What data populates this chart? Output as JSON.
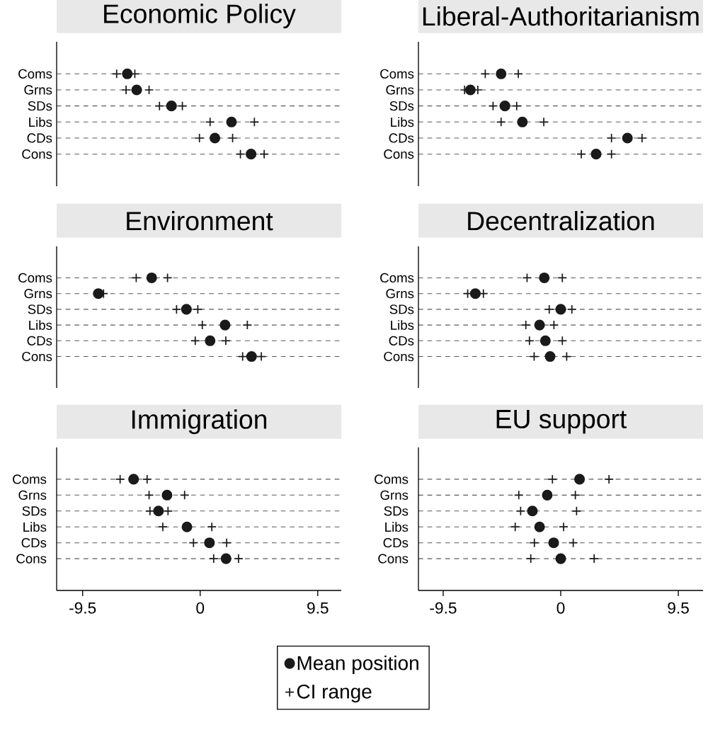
{
  "chart_data": [
    {
      "type": "scatter",
      "title": "Economic Policy",
      "orientation": "horizontal",
      "categories": [
        "Coms",
        "Grns",
        "SDs",
        "Libs",
        "CDs",
        "Cons"
      ],
      "xlim": [
        -11.6,
        11.4
      ],
      "xticks": [
        -9.5,
        0,
        9.5
      ],
      "tick_labels": "y",
      "grid": "y",
      "series": [
        {
          "color": "#1a1a1a",
          "marker": "circle",
          "values": [
            -5.89,
            -5.13,
            -2.32,
            2.53,
            1.19,
            4.11
          ]
        },
        {
          "color": "#1a1a1a",
          "marker": "cross",
          "values": [
            -6.75,
            -5.99,
            -3.29,
            0.8,
            -0.06,
            3.25
          ]
        },
        {
          "color": "#1a1a1a",
          "marker": "cross",
          "values": [
            -5.28,
            -4.13,
            -1.44,
            4.38,
            2.62,
            5.17
          ]
        }
      ]
    },
    {
      "type": "scatter",
      "title": "Liberal-Authoritarianism",
      "orientation": "horizontal",
      "categories": [
        "Coms",
        "Grns",
        "SDs",
        "Libs",
        "CDs",
        "Cons"
      ],
      "xlim": [
        -11.5,
        11.5
      ],
      "xticks": [
        -9.5,
        0,
        9.5
      ],
      "tick_labels": "y",
      "grid": "y",
      "series": [
        {
          "color": "#1a1a1a",
          "marker": "circle",
          "values": [
            -4.82,
            -7.3,
            -4.51,
            -3.1,
            5.39,
            2.86
          ]
        },
        {
          "color": "#1a1a1a",
          "marker": "cross",
          "values": [
            -6.1,
            -7.77,
            -5.47,
            -4.82,
            4.1,
            1.66
          ]
        },
        {
          "color": "#1a1a1a",
          "marker": "cross",
          "values": [
            -3.43,
            -6.7,
            -3.56,
            -1.37,
            6.57,
            4.1
          ]
        }
      ]
    },
    {
      "type": "scatter",
      "title": "Environment",
      "orientation": "horizontal",
      "categories": [
        "Coms",
        "Grns",
        "SDs",
        "Libs",
        "CDs",
        "Cons"
      ],
      "xlim": [
        -11.6,
        11.4
      ],
      "xticks": [
        -9.5,
        0,
        9.5
      ],
      "tick_labels": "y",
      "grid": "y",
      "series": [
        {
          "color": "#1a1a1a",
          "marker": "circle",
          "values": [
            -3.92,
            -8.23,
            -1.11,
            2.01,
            0.8,
            4.15
          ]
        },
        {
          "color": "#1a1a1a",
          "marker": "cross",
          "values": [
            -5.17,
            null,
            -1.91,
            0.17,
            -0.4,
            3.43
          ]
        },
        {
          "color": "#1a1a1a",
          "marker": "cross",
          "values": [
            -2.64,
            -7.81,
            -0.19,
            3.81,
            2.07,
            4.94
          ]
        }
      ]
    },
    {
      "type": "scatter",
      "title": "Decentralization",
      "orientation": "horizontal",
      "categories": [
        "Coms",
        "Grns",
        "SDs",
        "Libs",
        "CDs",
        "Cons"
      ],
      "xlim": [
        -11.5,
        11.5
      ],
      "xticks": [
        -9.5,
        0,
        9.5
      ],
      "tick_labels": "y",
      "grid": "y",
      "series": [
        {
          "color": "#1a1a1a",
          "marker": "circle",
          "values": [
            -1.33,
            -6.9,
            0.0,
            -1.71,
            -1.24,
            -0.86
          ]
        },
        {
          "color": "#1a1a1a",
          "marker": "cross",
          "values": [
            -2.72,
            -7.52,
            -0.93,
            -2.82,
            -2.53,
            -2.15
          ]
        },
        {
          "color": "#1a1a1a",
          "marker": "cross",
          "values": [
            0.13,
            -6.25,
            0.9,
            -0.55,
            0.13,
            0.48
          ]
        }
      ]
    },
    {
      "type": "scatter",
      "title": "Immigration",
      "orientation": "horizontal",
      "categories": [
        "Coms",
        "Grns",
        "SDs",
        "Libs",
        "CDs",
        "Cons"
      ],
      "xlim": [
        -11.6,
        11.4
      ],
      "xticks": [
        -9.5,
        0,
        9.5
      ],
      "grid": "y",
      "series": [
        {
          "color": "#1a1a1a",
          "marker": "circle",
          "values": [
            -5.38,
            -2.68,
            -3.37,
            -1.07,
            0.75,
            2.09
          ]
        },
        {
          "color": "#1a1a1a",
          "marker": "cross",
          "values": [
            -6.47,
            -4.13,
            -4.06,
            -3.02,
            -0.54,
            1.09
          ]
        },
        {
          "color": "#1a1a1a",
          "marker": "cross",
          "values": [
            -4.29,
            -1.26,
            -2.6,
            0.94,
            2.14,
            3.1
          ]
        }
      ]
    },
    {
      "type": "scatter",
      "title": "EU support",
      "orientation": "horizontal",
      "categories": [
        "Coms",
        "Grns",
        "SDs",
        "Libs",
        "CDs",
        "Cons"
      ],
      "xlim": [
        -11.5,
        11.5
      ],
      "xticks": [
        -9.5,
        0,
        9.5
      ],
      "grid": "y",
      "legend": "bottom",
      "series": [
        {
          "name": "Mean position",
          "color": "#1a1a1a",
          "marker": "circle",
          "values": [
            1.52,
            -1.09,
            -2.29,
            -1.71,
            -0.57,
            0.0
          ]
        },
        {
          "name": "CI range",
          "color": "#1a1a1a",
          "marker": "cross",
          "values": [
            -0.67,
            -3.39,
            -3.24,
            -3.68,
            -2.13,
            -2.42
          ]
        },
        {
          "color": "#1a1a1a",
          "marker": "cross",
          "values": [
            3.9,
            1.18,
            1.28,
            0.23,
            1.01,
            2.7
          ]
        }
      ]
    }
  ]
}
